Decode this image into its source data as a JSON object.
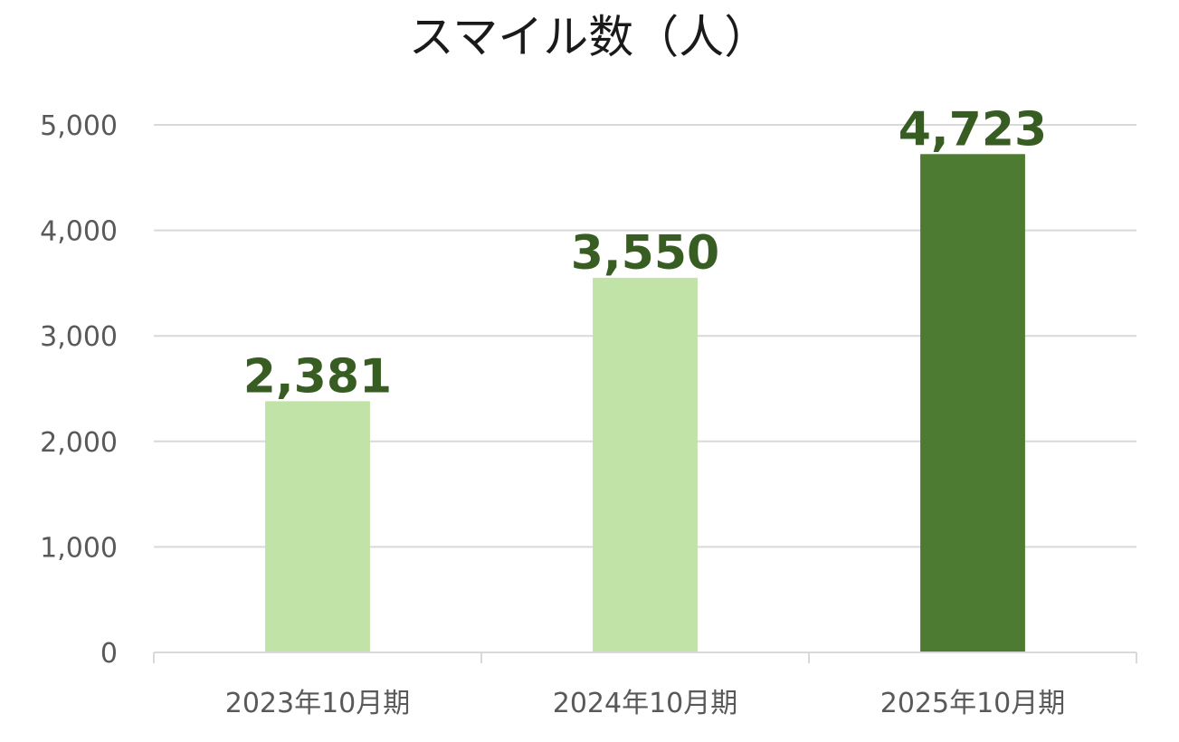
{
  "chart_data": {
    "type": "bar",
    "title": "スマイル数（人）",
    "categories": [
      "2023年10月期",
      "2024年10月期",
      "2025年10月期"
    ],
    "values": [
      2381,
      3550,
      4723
    ],
    "value_labels": [
      "2,381",
      "3,550",
      "4,723"
    ],
    "bar_colors": [
      "#c1e3a7",
      "#c1e3a7",
      "#4e7b32"
    ],
    "label_color": "#385d23",
    "ylim": [
      0,
      5000
    ],
    "yticks": [
      0,
      1000,
      2000,
      3000,
      4000,
      5000
    ],
    "ytick_labels": [
      "0",
      "1,000",
      "2,000",
      "3,000",
      "4,000",
      "5,000"
    ],
    "grid": true,
    "legend": "none"
  }
}
